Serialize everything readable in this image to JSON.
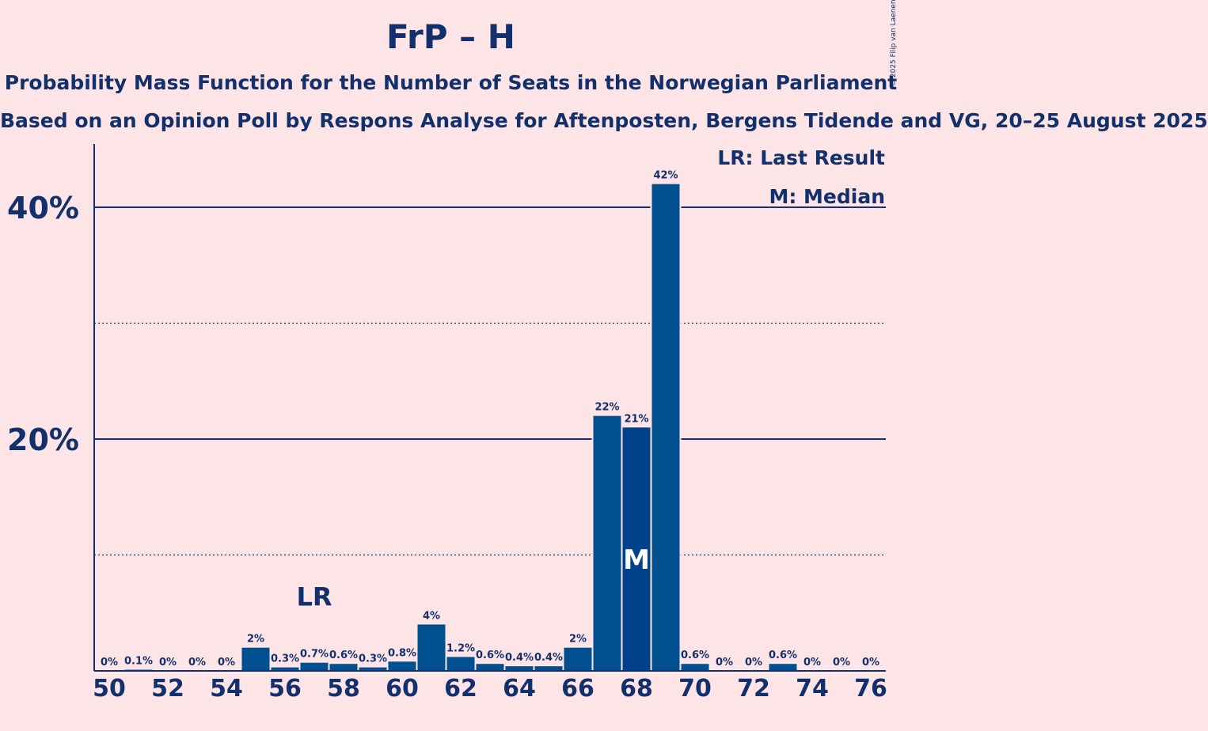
{
  "header": {
    "title": "FrP – H",
    "subtitle": "Probability Mass Function for the Number of Seats in the Norwegian Parliament",
    "subsubtitle": "Based on an Opinion Poll by Respons Analyse for Aftenposten, Bergens Tidende and VG, 20–25 August 2025",
    "copyright": "© 2025 Filip van Laenen"
  },
  "legend": {
    "lr": "LR: Last Result",
    "m": "M: Median"
  },
  "colors": {
    "background": "#fde4e6",
    "bar": "#00508f",
    "median_bar": "#00428a",
    "text": "#12306b"
  },
  "chart_data": {
    "type": "bar",
    "x": [
      50,
      51,
      52,
      53,
      54,
      55,
      56,
      57,
      58,
      59,
      60,
      61,
      62,
      63,
      64,
      65,
      66,
      67,
      68,
      69,
      70,
      71,
      72,
      73,
      74,
      75,
      76
    ],
    "values": [
      0,
      0.1,
      0,
      0,
      0,
      2,
      0.3,
      0.7,
      0.6,
      0.3,
      0.8,
      4,
      1.2,
      0.6,
      0.4,
      0.4,
      2,
      22,
      21,
      42,
      0.6,
      0,
      0,
      0.6,
      0,
      0,
      0
    ],
    "labels": [
      "0%",
      "0.1%",
      "0%",
      "0%",
      "0%",
      "2%",
      "0.3%",
      "0.7%",
      "0.6%",
      "0.3%",
      "0.8%",
      "4%",
      "1.2%",
      "0.6%",
      "0.4%",
      "0.4%",
      "2%",
      "22%",
      "21%",
      "42%",
      "0.6%",
      "0%",
      "0%",
      "0.6%",
      "0%",
      "0%",
      "0%"
    ],
    "xticks": [
      50,
      52,
      54,
      56,
      58,
      60,
      62,
      64,
      66,
      68,
      70,
      72,
      74,
      76
    ],
    "yticks": [
      {
        "value": 20,
        "label": "20%"
      },
      {
        "value": 40,
        "label": "40%"
      }
    ],
    "minor_gridlines": [
      10,
      30
    ],
    "ylim": [
      0,
      45
    ],
    "last_result": {
      "x": 57,
      "marker": "LR"
    },
    "median": {
      "x": 68,
      "marker": "M"
    },
    "legend_position": "top-right"
  }
}
